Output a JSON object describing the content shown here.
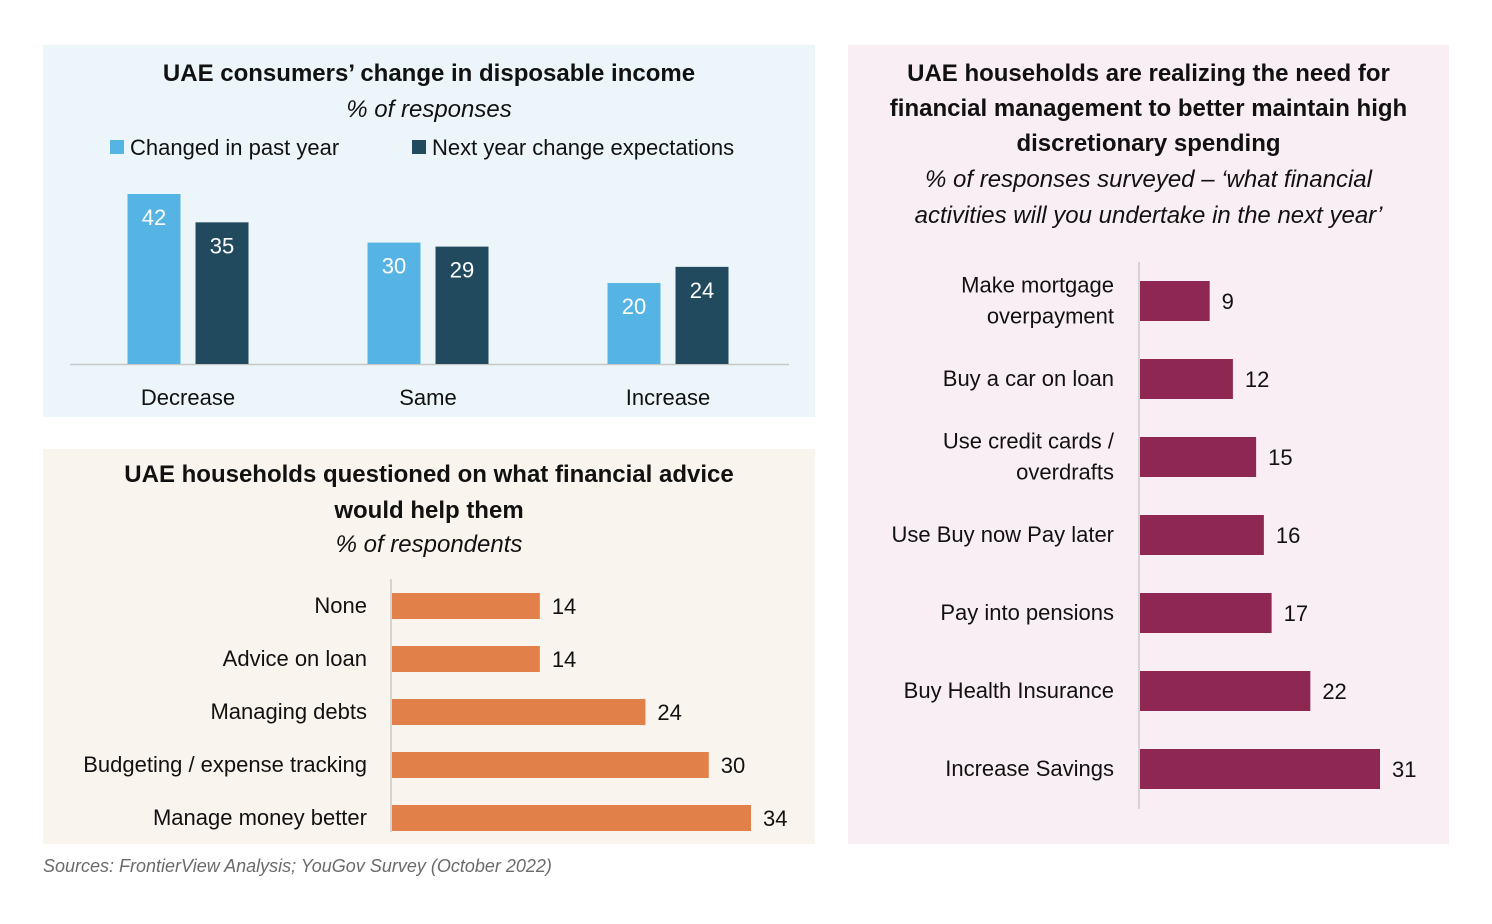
{
  "source": "Sources: FrontierView Analysis; YouGov Survey (October 2022)",
  "chart_data": [
    {
      "type": "bar",
      "title": "UAE consumers’ change in disposable income",
      "subtitle": "% of responses",
      "categories": [
        "Decrease",
        "Same",
        "Increase"
      ],
      "series": [
        {
          "name": "Changed in past year",
          "values": [
            42,
            30,
            20
          ],
          "color": "#56b4e5"
        },
        {
          "name": "Next year change expectations",
          "values": [
            35,
            29,
            24
          ],
          "color": "#224a5e"
        }
      ],
      "ylim": [
        0,
        45
      ]
    },
    {
      "type": "bar",
      "orientation": "horizontal",
      "title_lines": [
        "UAE households questioned on what financial advice",
        "would help them"
      ],
      "subtitle": "% of respondents",
      "categories": [
        "None",
        "Advice on loan",
        "Managing debts",
        "Budgeting / expense tracking",
        "Manage money better"
      ],
      "values": [
        14,
        14,
        24,
        30,
        34
      ],
      "color": "#e2804a",
      "xlim": [
        0,
        34
      ]
    },
    {
      "type": "bar",
      "orientation": "horizontal",
      "title_lines": [
        "UAE households are realizing the need for",
        "financial management to better maintain high",
        "discretionary spending"
      ],
      "subtitle_lines": [
        "% of responses surveyed – ‘what financial",
        "activities will you undertake in the next year’"
      ],
      "category_lines": [
        [
          "Make mortgage",
          "overpayment"
        ],
        [
          "Buy a car on loan"
        ],
        [
          "Use credit cards /",
          "overdrafts"
        ],
        [
          "Use Buy now Pay later"
        ],
        [
          "Pay into pensions"
        ],
        [
          "Buy Health Insurance"
        ],
        [
          "Increase Savings"
        ]
      ],
      "values": [
        9,
        12,
        15,
        16,
        17,
        22,
        31
      ],
      "color": "#8e2752",
      "xlim": [
        0,
        31
      ]
    }
  ]
}
